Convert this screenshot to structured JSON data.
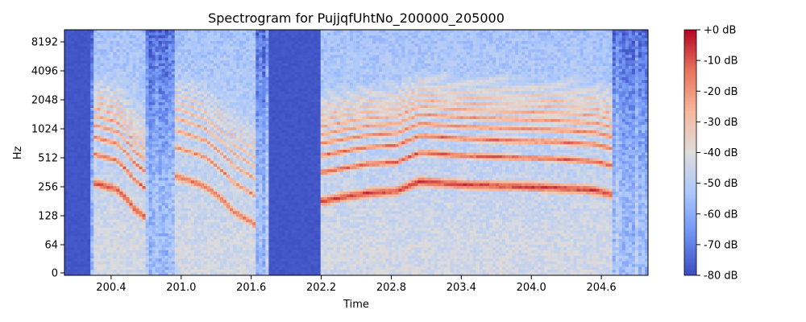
{
  "chart_data": {
    "type": "heatmap",
    "title": "Spectrogram for PujjqfUhtNo_200000_205000",
    "xlabel": "Time",
    "ylabel": "Hz",
    "x_unit": "seconds",
    "xlim": [
      200.0,
      205.0
    ],
    "x_ticks": [
      200.4,
      201.0,
      201.6,
      202.2,
      202.8,
      203.4,
      204.0,
      204.6
    ],
    "x_tick_labels": [
      "200.4",
      "201.0",
      "201.6",
      "202.2",
      "202.8",
      "203.4",
      "204.0",
      "204.6"
    ],
    "y_scale": "log2 above 64 Hz (symlog)",
    "ylim": [
      0,
      11025
    ],
    "y_ticks": [
      0,
      64,
      128,
      256,
      512,
      1024,
      2048,
      4096,
      8192
    ],
    "y_tick_labels": [
      "0",
      "64",
      "128",
      "256",
      "512",
      "1024",
      "2048",
      "4096",
      "8192"
    ],
    "colorbar": {
      "colormap": "coolwarm",
      "range": [
        -80,
        0
      ],
      "ticks": [
        0,
        -10,
        -20,
        -30,
        -40,
        -50,
        -60,
        -70,
        -80
      ],
      "tick_labels": [
        "+0 dB",
        "-10 dB",
        "-20 dB",
        "-30 dB",
        "-40 dB",
        "-50 dB",
        "-60 dB",
        "-70 dB",
        "-80 dB"
      ],
      "colors": [
        "#3b4cc0",
        "#6f92f3",
        "#aac7fd",
        "#dddcdc",
        "#f7b89c",
        "#e7745b",
        "#b40426"
      ]
    },
    "silent_segments": [
      [
        200.0,
        200.22
      ],
      [
        201.75,
        202.2
      ]
    ],
    "harmonic_tracks": [
      {
        "label": "f0 segment 1",
        "points": [
          [
            200.25,
            280
          ],
          [
            200.45,
            240
          ],
          [
            200.6,
            150
          ],
          [
            200.7,
            120
          ]
        ],
        "level_db": -10
      },
      {
        "label": "f0 segment 2",
        "points": [
          [
            200.95,
            330
          ],
          [
            201.2,
            260
          ],
          [
            201.45,
            140
          ],
          [
            201.65,
            100
          ]
        ],
        "level_db": -15
      },
      {
        "label": "f0 segment 3",
        "points": [
          [
            202.2,
            180
          ],
          [
            202.6,
            220
          ],
          [
            202.85,
            230
          ],
          [
            203.05,
            290
          ],
          [
            203.4,
            270
          ],
          [
            203.75,
            260
          ],
          [
            204.2,
            250
          ],
          [
            204.55,
            235
          ],
          [
            204.7,
            210
          ]
        ],
        "level_db": -8
      }
    ]
  }
}
